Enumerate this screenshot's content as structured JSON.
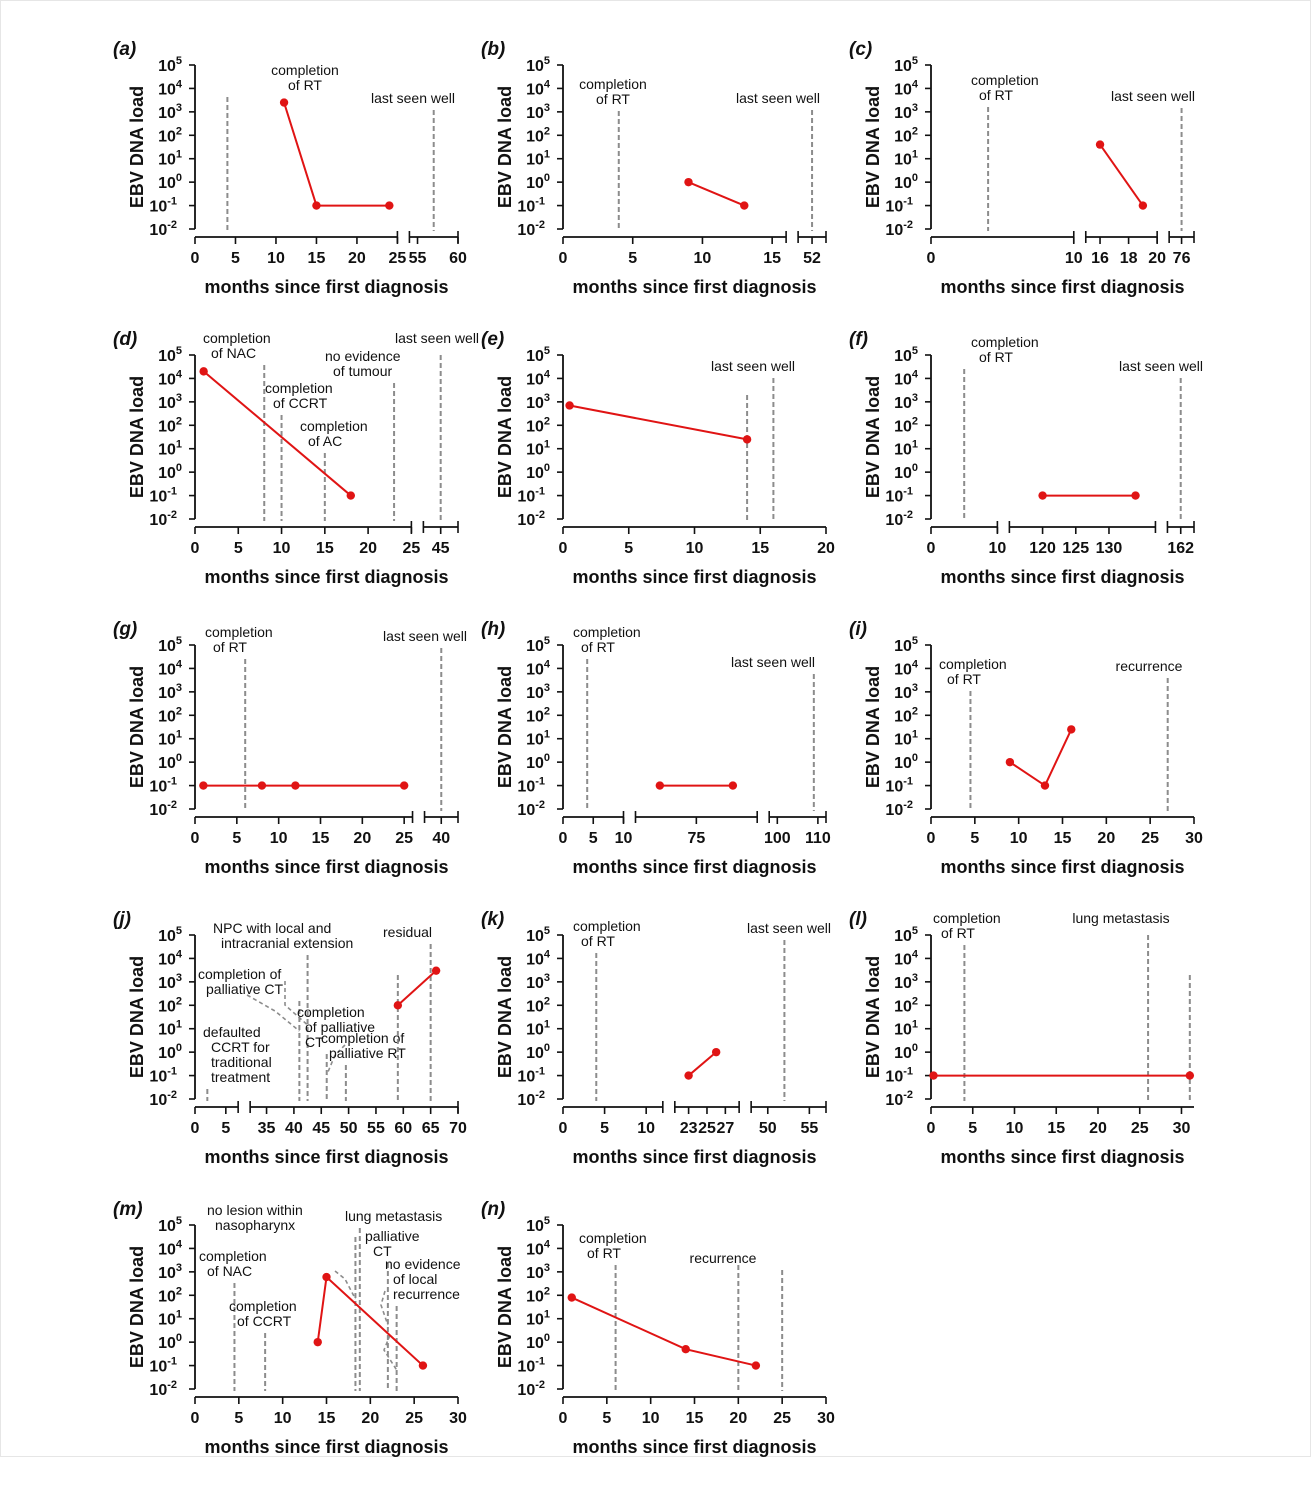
{
  "chart_data": [
    {
      "id": "a",
      "type": "line",
      "panel_label": "(a)",
      "ylabel": "EBV DNA load",
      "xlabel": "months since first diagnosis",
      "yscale": "log",
      "ylim": [
        0.01,
        100000
      ],
      "segments": [
        {
          "range": [
            0,
            25
          ],
          "ticks": [
            0,
            5,
            10,
            15,
            20,
            25
          ]
        },
        {
          "range": [
            54,
            60
          ],
          "ticks": [
            55,
            60
          ]
        }
      ],
      "x": [
        11,
        15,
        24
      ],
      "y": [
        2500,
        0.1,
        0.1
      ],
      "events": [
        {
          "x": 4,
          "label": "completion\nof RT"
        },
        {
          "x": 57,
          "label": "last seen well"
        }
      ]
    },
    {
      "id": "b",
      "type": "line",
      "panel_label": "(b)",
      "ylabel": "EBV DNA load",
      "xlabel": "months since first diagnosis",
      "yscale": "log",
      "ylim": [
        0.01,
        100000
      ],
      "segments": [
        {
          "range": [
            0,
            16
          ],
          "ticks": [
            0,
            5,
            10,
            15
          ]
        },
        {
          "range": [
            51,
            53
          ],
          "ticks": [
            52
          ]
        }
      ],
      "x": [
        9,
        13
      ],
      "y": [
        1,
        0.1
      ],
      "events": [
        {
          "x": 4,
          "label": "completion\nof RT"
        },
        {
          "x": 52,
          "label": "last seen well"
        }
      ]
    },
    {
      "id": "c",
      "type": "line",
      "panel_label": "(c)",
      "ylabel": "EBV DNA load",
      "xlabel": "months since first diagnosis",
      "yscale": "log",
      "ylim": [
        0.01,
        100000
      ],
      "segments": [
        {
          "range": [
            0,
            10
          ],
          "ticks": [
            0,
            10
          ]
        },
        {
          "range": [
            15,
            20
          ],
          "ticks": [
            16,
            18,
            20
          ]
        },
        {
          "range": [
            75.5,
            76.5
          ],
          "ticks": [
            76
          ]
        }
      ],
      "x": [
        16,
        19
      ],
      "y": [
        40,
        0.1
      ],
      "events": [
        {
          "x": 4,
          "label": "completion\nof RT"
        },
        {
          "x": 76,
          "label": "last seen well"
        }
      ]
    },
    {
      "id": "d",
      "type": "line",
      "panel_label": "(d)",
      "ylabel": "EBV DNA load",
      "xlabel": "months since first diagnosis",
      "yscale": "log",
      "ylim": [
        0.01,
        100000
      ],
      "segments": [
        {
          "range": [
            0,
            25
          ],
          "ticks": [
            0,
            5,
            10,
            15,
            20,
            25
          ]
        },
        {
          "range": [
            43,
            47
          ],
          "ticks": [
            45
          ]
        }
      ],
      "x": [
        1,
        18
      ],
      "y": [
        20000,
        0.1
      ],
      "events": [
        {
          "x": 8,
          "label": "completion\nof NAC"
        },
        {
          "x": 10,
          "label": "completion\nof CCRT"
        },
        {
          "x": 15,
          "label": "completion\nof AC"
        },
        {
          "x": 23,
          "label": "no evidence\nof tumour"
        },
        {
          "x": 45,
          "label": "last seen well"
        }
      ]
    },
    {
      "id": "e",
      "type": "line",
      "panel_label": "(e)",
      "ylabel": "EBV DNA load",
      "xlabel": "months since first diagnosis",
      "yscale": "log",
      "ylim": [
        0.01,
        100000
      ],
      "segments": [
        {
          "range": [
            0,
            20
          ],
          "ticks": [
            0,
            5,
            10,
            15,
            20
          ]
        }
      ],
      "x": [
        0.5,
        14
      ],
      "y": [
        700,
        25
      ],
      "events": [
        {
          "x": 14,
          "label": ""
        },
        {
          "x": 16,
          "label": "last seen well"
        }
      ]
    },
    {
      "id": "f",
      "type": "line",
      "panel_label": "(f)",
      "ylabel": "EBV DNA load",
      "xlabel": "months since first diagnosis",
      "yscale": "log",
      "ylim": [
        0.01,
        100000
      ],
      "segments": [
        {
          "range": [
            0,
            10
          ],
          "ticks": [
            0,
            10
          ]
        },
        {
          "range": [
            115,
            137
          ],
          "ticks": [
            120,
            125,
            130
          ]
        },
        {
          "range": [
            160,
            164
          ],
          "ticks": [
            162
          ]
        }
      ],
      "x": [
        120,
        134
      ],
      "y": [
        0.1,
        0.1
      ],
      "events": [
        {
          "x": 5,
          "label": "completion\nof RT"
        },
        {
          "x": 162,
          "label": "last seen well"
        }
      ]
    },
    {
      "id": "g",
      "type": "line",
      "panel_label": "(g)",
      "ylabel": "EBV DNA load",
      "xlabel": "months since first diagnosis",
      "yscale": "log",
      "ylim": [
        0.01,
        100000
      ],
      "segments": [
        {
          "range": [
            0,
            26
          ],
          "ticks": [
            0,
            5,
            10,
            15,
            20,
            25
          ]
        },
        {
          "range": [
            38,
            42
          ],
          "ticks": [
            40
          ]
        }
      ],
      "x": [
        1,
        8,
        12,
        25
      ],
      "y": [
        0.1,
        0.1,
        0.1,
        0.1
      ],
      "events": [
        {
          "x": 6,
          "label": "completion\nof RT"
        },
        {
          "x": 40,
          "label": "last seen well"
        }
      ]
    },
    {
      "id": "h",
      "type": "line",
      "panel_label": "(h)",
      "ylabel": "EBV DNA load",
      "xlabel": "months since first diagnosis",
      "yscale": "log",
      "ylim": [
        0.01,
        100000
      ],
      "segments": [
        {
          "range": [
            0,
            10
          ],
          "ticks": [
            0,
            5,
            10
          ]
        },
        {
          "range": [
            60,
            90
          ],
          "ticks": [
            75
          ]
        },
        {
          "range": [
            98,
            112
          ],
          "ticks": [
            100,
            110
          ]
        }
      ],
      "x": [
        66,
        84
      ],
      "y": [
        0.1,
        0.1
      ],
      "events": [
        {
          "x": 4,
          "label": "completion\nof RT"
        },
        {
          "x": 109,
          "label": "last seen well"
        }
      ]
    },
    {
      "id": "i",
      "type": "line",
      "panel_label": "(i)",
      "ylabel": "EBV DNA load",
      "xlabel": "months since first diagnosis",
      "yscale": "log",
      "ylim": [
        0.01,
        100000
      ],
      "segments": [
        {
          "range": [
            0,
            30
          ],
          "ticks": [
            0,
            5,
            10,
            15,
            20,
            25,
            30
          ]
        }
      ],
      "x": [
        9,
        13,
        16
      ],
      "y": [
        1,
        0.1,
        25
      ],
      "events": [
        {
          "x": 4.5,
          "label": "completion\nof RT"
        },
        {
          "x": 27,
          "label": "recurrence"
        }
      ]
    },
    {
      "id": "j",
      "type": "line",
      "panel_label": "(j)",
      "ylabel": "EBV DNA load",
      "xlabel": "months since first diagnosis",
      "yscale": "log",
      "ylim": [
        0.01,
        100000
      ],
      "segments": [
        {
          "range": [
            0,
            7
          ],
          "ticks": [
            0,
            5
          ]
        },
        {
          "range": [
            32,
            70
          ],
          "ticks": [
            35,
            40,
            45,
            50,
            55,
            60,
            65,
            70
          ]
        }
      ],
      "x": [
        59,
        66
      ],
      "y": [
        100,
        3000
      ],
      "events": [
        {
          "x": 2,
          "label": "defaulted\nCCRT for\ntraditional\ntreatment"
        },
        {
          "x": 41,
          "label": "completion of\npalliative CT"
        },
        {
          "x": 42.5,
          "label": "NPC with local and\nintracranial extension"
        },
        {
          "x": 46,
          "label": "completion\nof palliative\nCT"
        },
        {
          "x": 49.5,
          "label": "completion of\npalliative RT"
        },
        {
          "x": 59,
          "label": ""
        },
        {
          "x": 65,
          "label": "residual"
        }
      ]
    },
    {
      "id": "k",
      "type": "line",
      "panel_label": "(k)",
      "ylabel": "EBV DNA load",
      "xlabel": "months since first diagnosis",
      "yscale": "log",
      "ylim": [
        0.01,
        100000
      ],
      "segments": [
        {
          "range": [
            0,
            12
          ],
          "ticks": [
            0,
            5,
            10
          ]
        },
        {
          "range": [
            21.5,
            28.5
          ],
          "ticks": [
            23,
            25,
            27
          ]
        },
        {
          "range": [
            48,
            57
          ],
          "ticks": [
            50,
            55
          ]
        }
      ],
      "x": [
        23,
        26
      ],
      "y": [
        0.1,
        1
      ],
      "events": [
        {
          "x": 4,
          "label": "completion\nof RT"
        },
        {
          "x": 52,
          "label": "last seen well"
        }
      ]
    },
    {
      "id": "l",
      "type": "line",
      "panel_label": "(l)",
      "ylabel": "EBV DNA load",
      "xlabel": "months since first diagnosis",
      "yscale": "log",
      "ylim": [
        0.01,
        100000
      ],
      "segments": [
        {
          "range": [
            0,
            31.5
          ],
          "ticks": [
            0,
            5,
            10,
            15,
            20,
            25,
            30
          ]
        }
      ],
      "x": [
        0.3,
        31
      ],
      "y": [
        0.1,
        0.1
      ],
      "events": [
        {
          "x": 4,
          "label": "completion\nof RT"
        },
        {
          "x": 26,
          "label": "lung metastasis"
        },
        {
          "x": 31,
          "label": ""
        }
      ]
    },
    {
      "id": "m",
      "type": "line",
      "panel_label": "(m)",
      "ylabel": "EBV DNA load",
      "xlabel": "months since first diagnosis",
      "yscale": "log",
      "ylim": [
        0.01,
        100000
      ],
      "segments": [
        {
          "range": [
            0,
            30
          ],
          "ticks": [
            0,
            5,
            10,
            15,
            20,
            25,
            30
          ]
        }
      ],
      "x": [
        14,
        15,
        26
      ],
      "y": [
        1,
        600,
        0.1
      ],
      "events": [
        {
          "x": 4.5,
          "label": "completion\nof NAC"
        },
        {
          "x": 8,
          "label": "completion\nof CCRT"
        },
        {
          "x": 18.3,
          "label": "no lesion within\nnasopharynx"
        },
        {
          "x": 18.8,
          "label": "lung metastasis"
        },
        {
          "x": 22,
          "label": "palliative\nCT"
        },
        {
          "x": 23,
          "label": "no evidence\nof local\nrecurrence"
        }
      ]
    },
    {
      "id": "n",
      "type": "line",
      "panel_label": "(n)",
      "ylabel": "EBV DNA load",
      "xlabel": "months since first diagnosis",
      "yscale": "log",
      "ylim": [
        0.01,
        100000
      ],
      "segments": [
        {
          "range": [
            0,
            30
          ],
          "ticks": [
            0,
            5,
            10,
            15,
            20,
            25,
            30
          ]
        }
      ],
      "x": [
        1,
        14,
        22
      ],
      "y": [
        80,
        0.5,
        0.1
      ],
      "events": [
        {
          "x": 6,
          "label": "completion\nof RT"
        },
        {
          "x": 20,
          "label": ""
        },
        {
          "x": 25,
          "label": "recurrence"
        }
      ]
    }
  ],
  "style": {
    "series_color": "#e01414",
    "event_line_color": "#8c8c8c",
    "axis_color": "#111111"
  }
}
